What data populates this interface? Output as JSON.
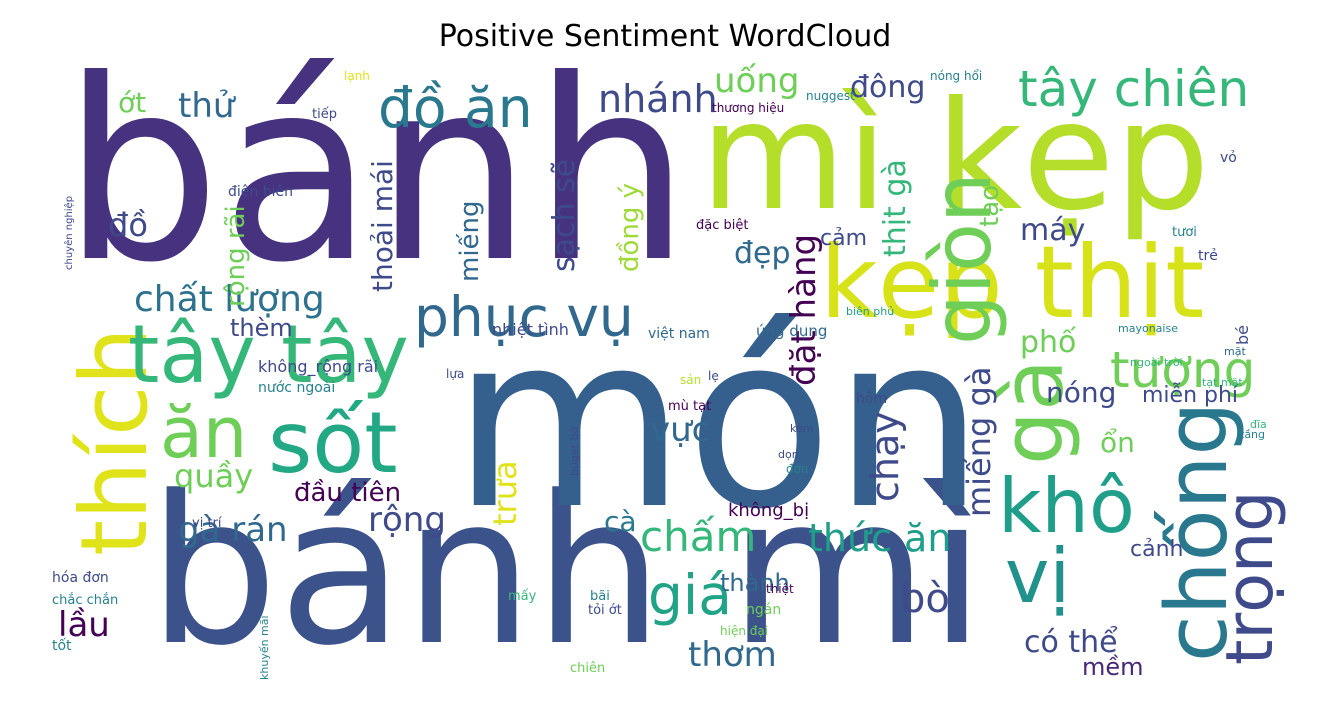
{
  "title": "Positive Sentiment WordCloud",
  "words": [
    "bánh",
    "mì kẹp",
    "bánh mì",
    "món",
    "kẹp thịt",
    "giòn",
    "gà",
    "thích",
    "tây tây",
    "phục vụ",
    "sốt",
    "ăn",
    "đồ ăn",
    "tây chiên",
    "chống",
    "trọng",
    "khô",
    "vị",
    "tượng",
    "giá",
    "chấm",
    "thức ăn",
    "chất lượng",
    "nhánh",
    "uống",
    "thử",
    "đông",
    "gà rán",
    "quầy",
    "đầu tiên",
    "rộng",
    "vực",
    "cà",
    "bò",
    "lầu",
    "thơm",
    "có thể",
    "mềm",
    "đẹp",
    "cảm",
    "máy",
    "phố",
    "nóng",
    "miễn phí",
    "thèm",
    "đồ",
    "ớt",
    "thành",
    "cảnh",
    "ổn",
    "không_bị",
    "đặt hàng",
    "chạy",
    "miếng gà",
    "thoải mái",
    "miếng",
    "sạch sẽ",
    "đồng ý",
    "thịt gà",
    "tạo",
    "rộng rãi",
    "trưa",
    "không_rộng rãi",
    "nước ngoài",
    "hóa đơn",
    "chắc chắn",
    "khuyến mãi",
    "vị trí",
    "điện biên",
    "thương hiệu",
    "nhiệt tình",
    "việt nam",
    "ứng dụng",
    "đặc biệt",
    "mayonaise",
    "ngoài trời",
    "biên phủ",
    "mù tạt",
    "tỏi ớt",
    "hiện đại",
    "ngán",
    "tạt mặt",
    "buger bò",
    "tươi",
    "trẻ",
    "bé",
    "hôm",
    "đơn",
    "thiệt",
    "mặt",
    "tầng",
    "tốt",
    "vỏ",
    "chiên",
    "mấy",
    "bãi",
    "dọn",
    "kèm",
    "lẹ",
    "sản",
    "đĩa",
    "lựa",
    "tiếp",
    "lạnh",
    "nóng hổi",
    "nuggest",
    "chuyên nghiệp"
  ]
}
